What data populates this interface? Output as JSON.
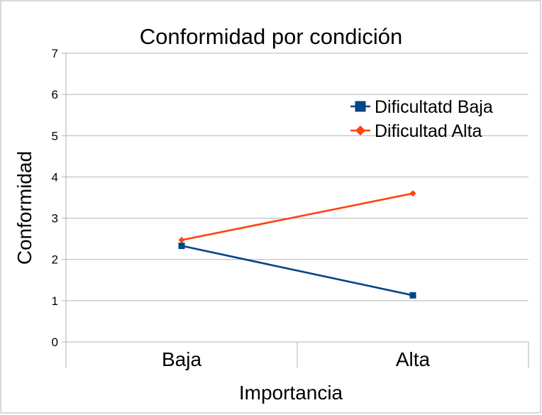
{
  "chart_data": {
    "type": "line",
    "title": "Conformidad por condición",
    "xlabel": "Importancia",
    "ylabel": "Conformidad",
    "categories": [
      "Baja",
      "Alta"
    ],
    "yticks": [
      "0",
      "1",
      "2",
      "3",
      "4",
      "5",
      "6",
      "7"
    ],
    "ylim": [
      0,
      7
    ],
    "grid": true,
    "legend": "top-right",
    "series": [
      {
        "name": "Dificultatd Baja",
        "values": [
          2.33,
          1.13
        ],
        "color": "#004586",
        "marker": "square"
      },
      {
        "name": "Dificultad Alta",
        "values": [
          2.47,
          3.6
        ],
        "color": "#ff420e",
        "marker": "diamond"
      }
    ]
  }
}
